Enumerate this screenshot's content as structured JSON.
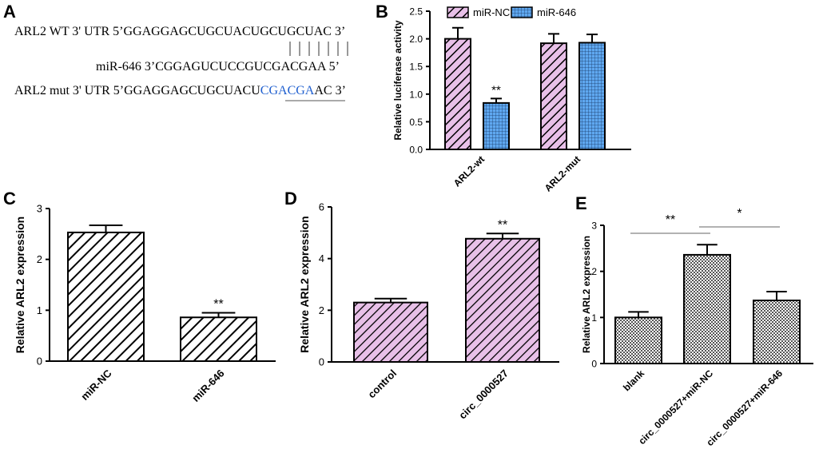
{
  "colors": {
    "axis": "#000000",
    "hatch_black": "#000000",
    "hatch_pink": "#e8c0e8",
    "grid_blue": "#5fa8f0",
    "highlight": "#1f5fcf",
    "bracket": "#999999"
  },
  "panel_a": {
    "label": "A",
    "wt_prefix": "ARL2 WT 3' UTR 5’",
    "wt_seq": "GGAGGAGCUGCUACUGCUGCUAC 3’",
    "mir_prefix": "miR-646  3’",
    "mir_seq": "CGGAGUCUCCGUCGACGAA 5’",
    "mut_prefix": "ARL2 mut 3' UTR 5’",
    "mut_seq_a": "GGAGGAGCUGCUACU",
    "mut_seq_b": "CGACGA",
    "mut_seq_c": "AC 3’"
  },
  "chart_data": [
    {
      "panel": "B",
      "type": "bar",
      "categories": [
        "ARL2-wt",
        "ARL2-mut"
      ],
      "series": [
        {
          "name": "miR-NC",
          "values": [
            2.0,
            1.92
          ],
          "errors": [
            0.2,
            0.17
          ],
          "pattern": "diag-pink"
        },
        {
          "name": "miR-646",
          "values": [
            0.84,
            1.93
          ],
          "errors": [
            0.08,
            0.15
          ],
          "pattern": "grid-blue"
        }
      ],
      "significance": [
        {
          "category": 0,
          "series": 1,
          "text": "**"
        }
      ],
      "ylabel": "Relative luciferase activity",
      "ylim": [
        0,
        2.5
      ],
      "yticks": [
        "0.0",
        "0.5",
        "1.0",
        "1.5",
        "2.0",
        "2.5"
      ]
    },
    {
      "panel": "C",
      "type": "bar",
      "categories": [
        "miR-NC",
        "miR-646"
      ],
      "values": [
        2.53,
        0.86
      ],
      "errors": [
        0.14,
        0.09
      ],
      "significance": [
        {
          "index": 1,
          "text": "**"
        }
      ],
      "ylabel": "Relative ARL2 expression",
      "ylim": [
        0,
        3
      ],
      "yticks": [
        "0",
        "1",
        "2",
        "3"
      ]
    },
    {
      "panel": "D",
      "type": "bar",
      "categories": [
        "control",
        "circ_0000527"
      ],
      "values": [
        2.3,
        4.77
      ],
      "errors": [
        0.15,
        0.2
      ],
      "significance": [
        {
          "index": 1,
          "text": "**"
        }
      ],
      "ylabel": "Relative ARL2 expression",
      "ylim": [
        0,
        6
      ],
      "yticks": [
        "0",
        "2",
        "4",
        "6"
      ]
    },
    {
      "panel": "E",
      "type": "bar",
      "categories": [
        "blank",
        "circ_0000527+miR-NC",
        "circ_0000527+miR-646"
      ],
      "values": [
        1.0,
        2.36,
        1.37
      ],
      "errors": [
        0.12,
        0.22,
        0.19
      ],
      "brackets": [
        {
          "from": 0,
          "to": 1,
          "text": "**"
        },
        {
          "from": 1,
          "to": 2,
          "text": "*"
        }
      ],
      "ylabel": "Relative ARL2 expression",
      "ylim": [
        0,
        3
      ],
      "yticks": [
        "0",
        "1",
        "2",
        "3"
      ]
    }
  ]
}
